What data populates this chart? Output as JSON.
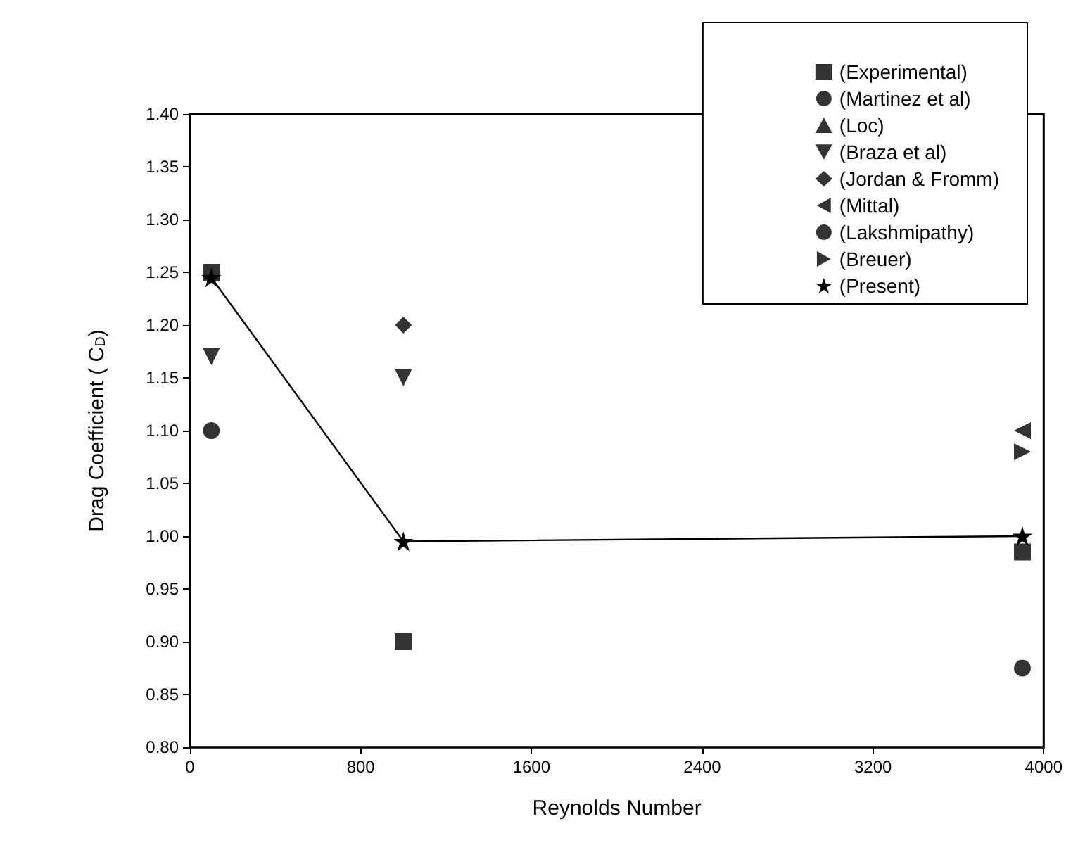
{
  "chart_data": {
    "type": "scatter",
    "xlabel": "Reynolds Number",
    "ylabel": "Drag Coefficient ( C$_{D}$)",
    "xlim": [
      0,
      4000
    ],
    "xticks": [
      0,
      800,
      1600,
      2400,
      3200,
      4000
    ],
    "ylim": [
      0.8,
      1.4
    ],
    "yticks": [
      {
        "value": 0.8,
        "label": "0.80"
      },
      0.85,
      {
        "value": 0.9,
        "label": "0.90"
      },
      0.95,
      {
        "value": 1,
        "label": "1.00"
      },
      1.05,
      {
        "value": 1.1,
        "label": "1.10"
      },
      1.15,
      {
        "value": 1.2,
        "label": "1.20"
      },
      1.25,
      {
        "value": 1.3,
        "label": "1.30"
      },
      1.35,
      {
        "value": 1.4,
        "label": "1.40"
      }
    ],
    "grid": false,
    "legend": "top right",
    "series": [
      {
        "name": "(Experimental)",
        "color": "#000000",
        "marker": "square",
        "x": [
          100,
          1000,
          3900
        ],
        "values": [
          1.25,
          0.9,
          0.985
        ]
      },
      {
        "name": "(Martinez et al)",
        "color": "#000000",
        "marker": "circle",
        "x": [
          100
        ],
        "values": [
          1.1
        ]
      },
      {
        "name": "(Loc)",
        "color": "#000000",
        "marker": "triangle"
      },
      {
        "name": "(Braza et al)",
        "color": "#000000",
        "marker": "triangle-down",
        "x": [
          100,
          1000
        ],
        "values": [
          1.17,
          1.15
        ]
      },
      {
        "name": "(Jordan & Fromm)",
        "color": "#000000",
        "marker": "diamond",
        "x": [
          1000
        ],
        "values": [
          1.2
        ]
      },
      {
        "name": "(Mittal)",
        "color": "#000000",
        "marker": "triangle-left",
        "x": [
          3900
        ],
        "values": [
          1.1
        ]
      },
      {
        "name": "(Lakshmipathy)",
        "color": "#000000",
        "marker": "circle",
        "x": [
          3900
        ],
        "values": [
          0.875
        ]
      },
      {
        "name": "(Breuer)",
        "color": "#000000",
        "marker": "triangle-right",
        "x": [
          3900
        ],
        "values": [
          1.08
        ]
      },
      {
        "name": "(Present)",
        "type": "line",
        "color": "#000000",
        "marker": "star",
        "line_style": "solid",
        "x": [
          100,
          1000,
          3900
        ],
        "values": [
          1.245,
          0.995,
          1.0
        ]
      }
    ]
  }
}
